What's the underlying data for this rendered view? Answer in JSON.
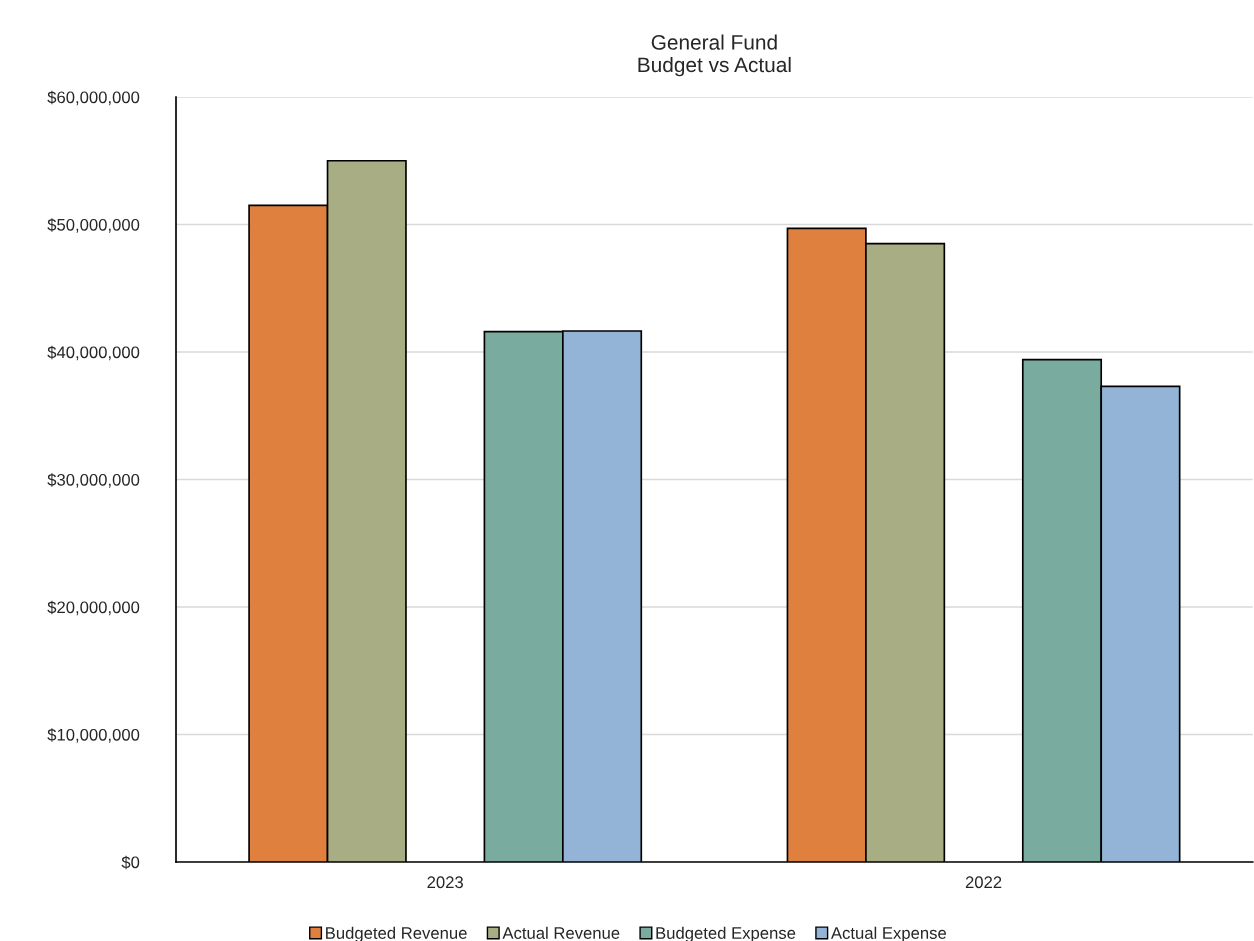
{
  "chart_data": {
    "type": "bar",
    "title": "General Fund\nBudget vs Actual",
    "categories": [
      "2023",
      "2022"
    ],
    "series": [
      {
        "name": "Budgeted Revenue",
        "color": "#e0803e",
        "values": [
          51500000,
          49700000
        ]
      },
      {
        "name": "Actual Revenue",
        "color": "#a8ad84",
        "values": [
          55000000,
          48500000
        ]
      },
      {
        "name": "Budgeted Expense",
        "color": "#7aab9f",
        "values": [
          41600000,
          39400000
        ]
      },
      {
        "name": "Actual Expense",
        "color": "#93b4d6",
        "values": [
          41650000,
          37300000
        ]
      }
    ],
    "ylim": [
      0,
      60000000
    ],
    "yticks": [
      {
        "value": 0,
        "label": "$0"
      },
      {
        "value": 10000000,
        "label": "$10,000,000"
      },
      {
        "value": 20000000,
        "label": "$20,000,000"
      },
      {
        "value": 30000000,
        "label": "$30,000,000"
      },
      {
        "value": 40000000,
        "label": "$40,000,000"
      },
      {
        "value": 50000000,
        "label": "$50,000,000"
      },
      {
        "value": 60000000,
        "label": "$60,000,000"
      }
    ],
    "grid": "y",
    "legend": "bottom"
  }
}
